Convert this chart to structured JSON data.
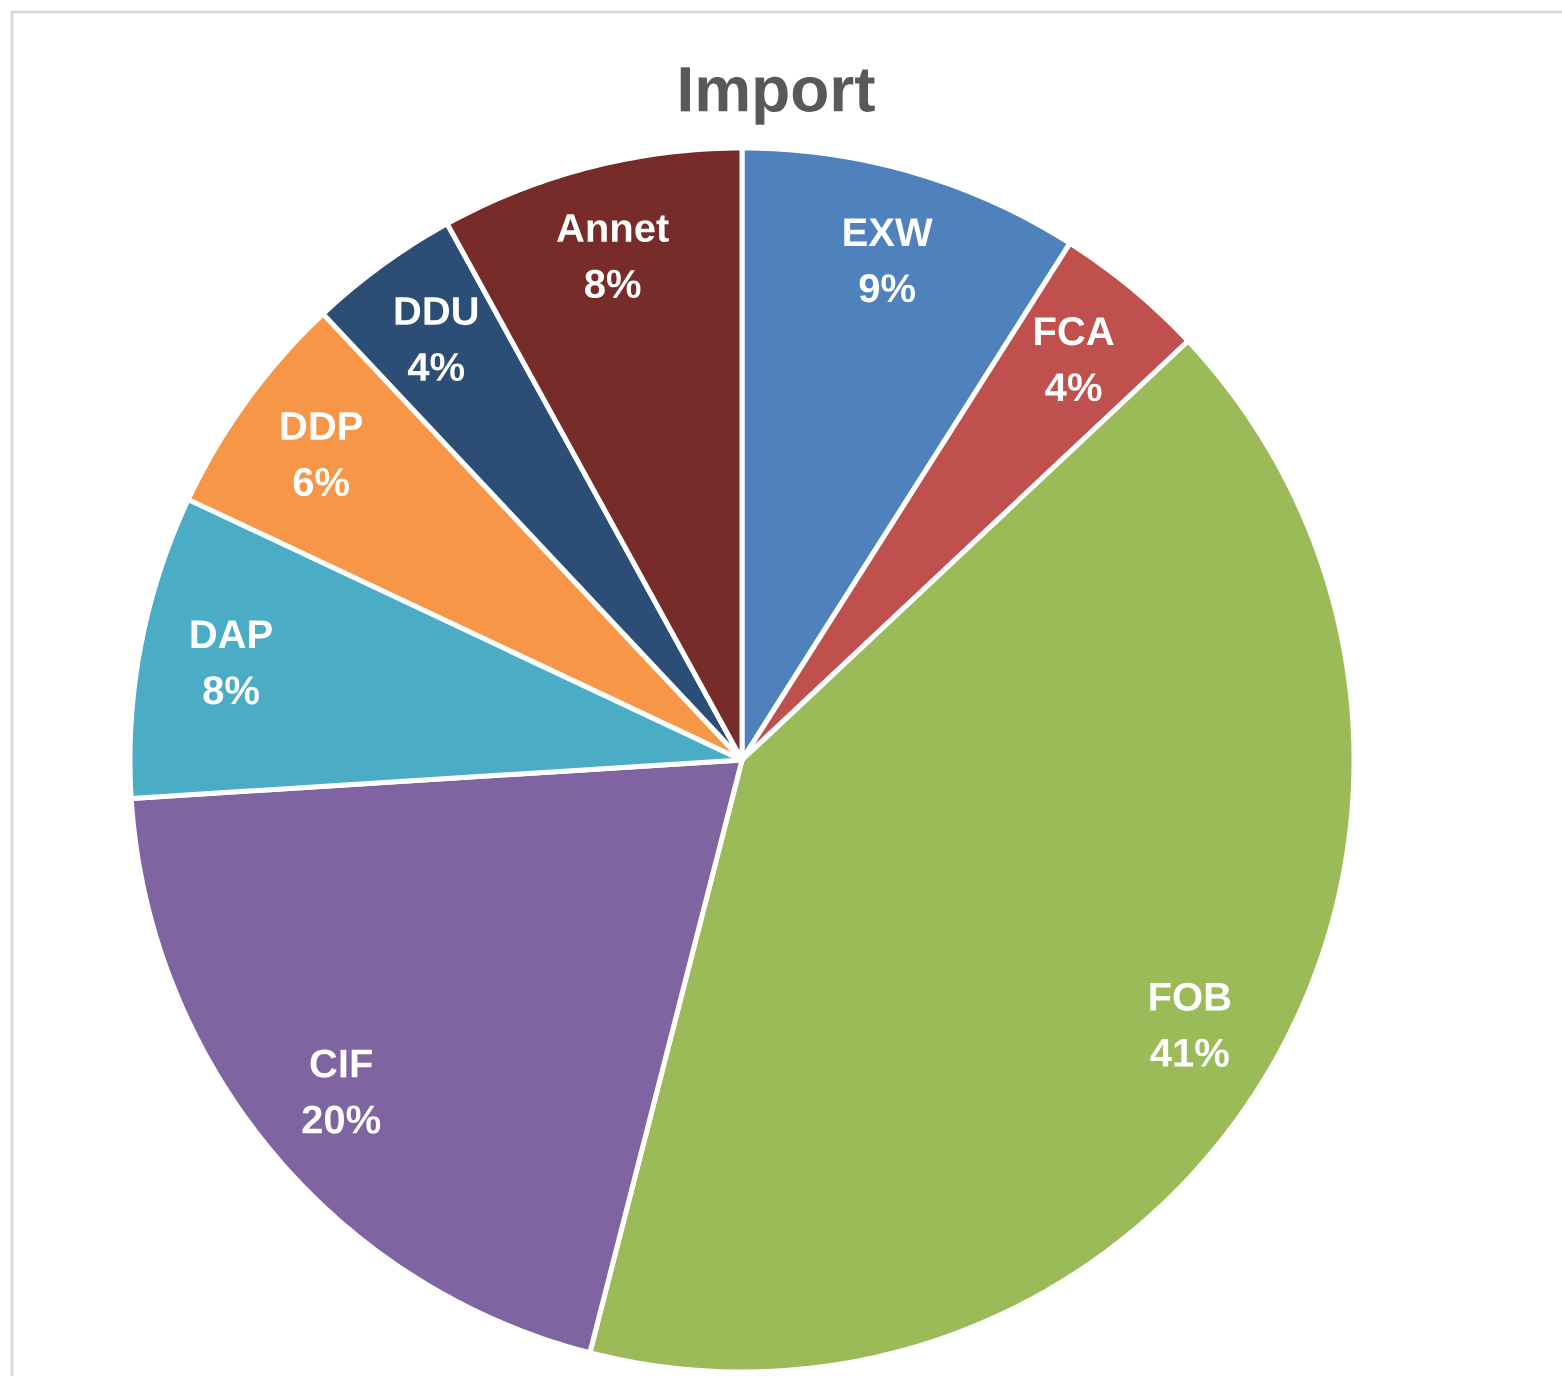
{
  "chart_data": {
    "type": "pie",
    "title": "Import",
    "categories": [
      "EXW",
      "FCA",
      "FOB",
      "CIF",
      "DAP",
      "DDP",
      "DDU",
      "Annet"
    ],
    "values": [
      9,
      4,
      41,
      20,
      8,
      6,
      4,
      8
    ],
    "value_labels": [
      "9%",
      "4%",
      "41%",
      "20%",
      "8%",
      "6%",
      "4%",
      "8%"
    ],
    "colors": [
      "#4f81bd",
      "#c0504d",
      "#9bbb59",
      "#8064a2",
      "#4bacc6",
      "#f79646",
      "#2c4d75",
      "#772c2a"
    ]
  }
}
